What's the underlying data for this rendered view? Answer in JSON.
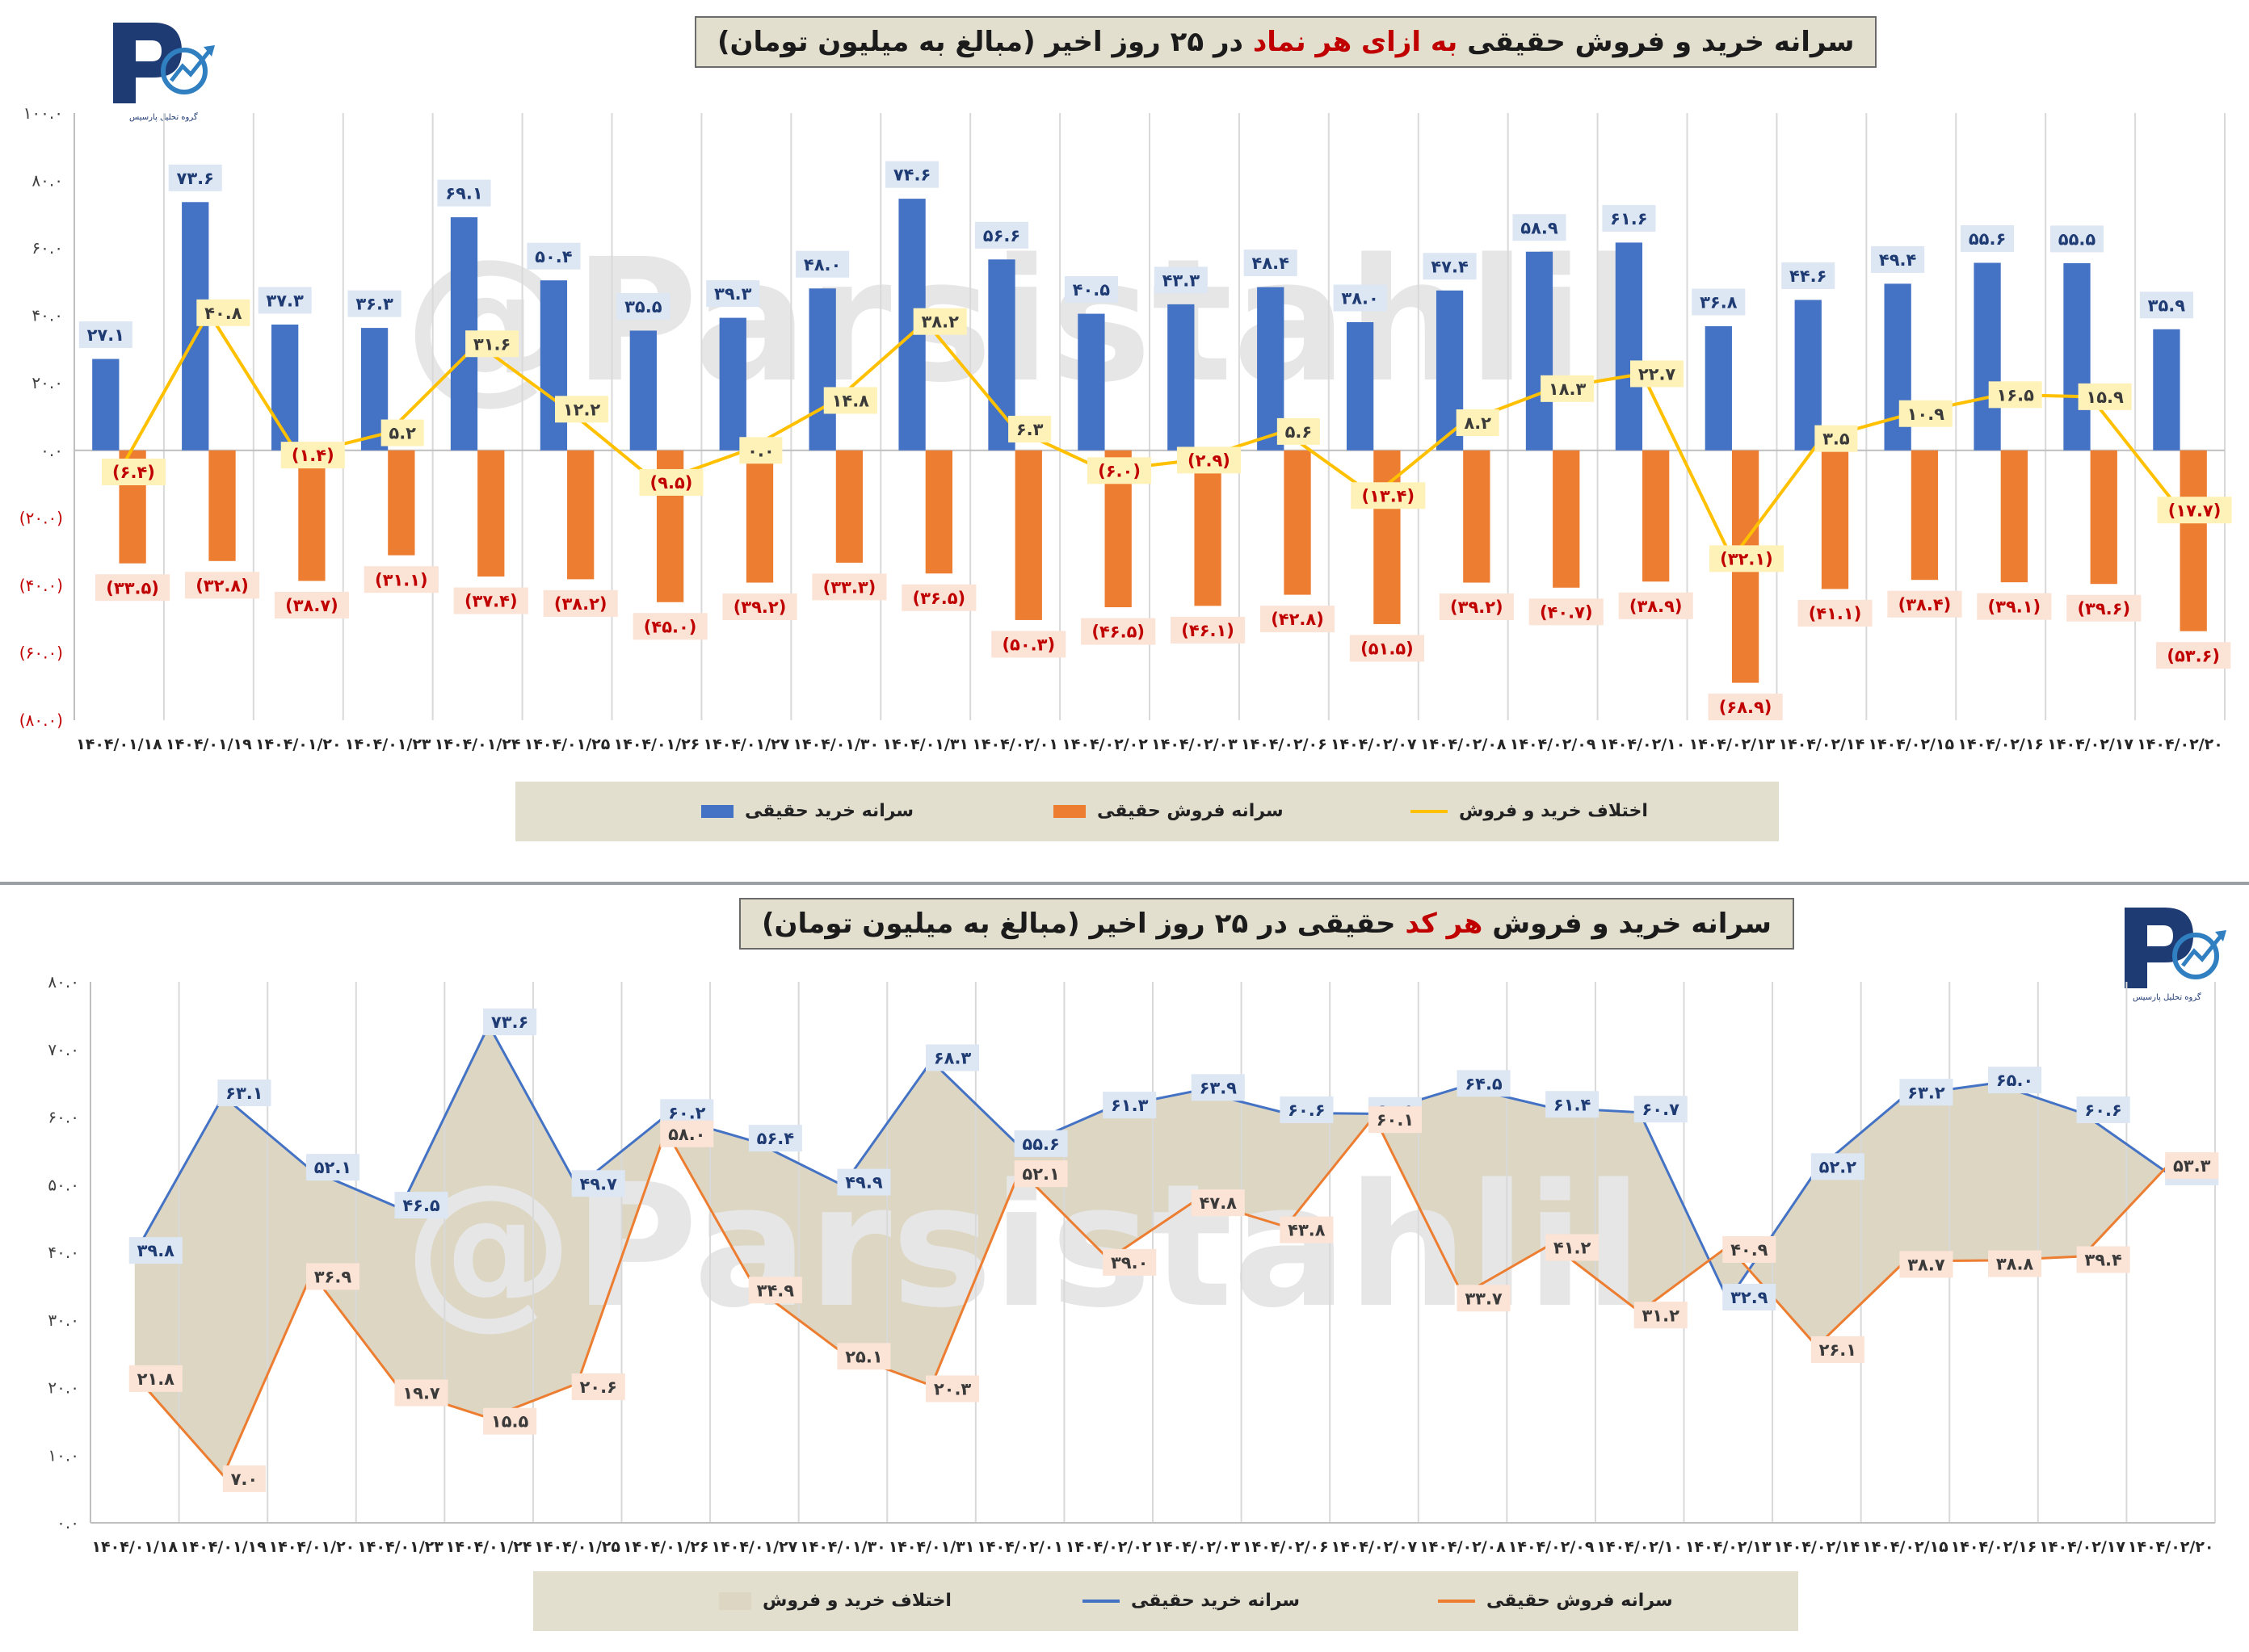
{
  "colors": {
    "buy": "#4472c4",
    "sell": "#ed7d31",
    "diff_line": "#ffc000",
    "area_fill": "#dcd6c2",
    "negative_label": "#c00000",
    "title_bg": "#e3dfcf",
    "title_accent": "#c00000",
    "watermark": "#e6e6e6"
  },
  "logo": {
    "caption": "گروه تحلیل پارسیس"
  },
  "watermark": "@Parsistahlil",
  "chart_data": [
    {
      "type": "bar",
      "title_parts": [
        "سرانه خرید و فروش حقیقی ",
        "به ازای هر نماد",
        " در ۲۵ روز اخیر (مبالغ به میلیون تومان)"
      ],
      "categories": [
        "۱۴۰۴/۰۱/۱۸",
        "۱۴۰۴/۰۱/۱۹",
        "۱۴۰۴/۰۱/۲۰",
        "۱۴۰۴/۰۱/۲۳",
        "۱۴۰۴/۰۱/۲۴",
        "۱۴۰۴/۰۱/۲۵",
        "۱۴۰۴/۰۱/۲۶",
        "۱۴۰۴/۰۱/۲۷",
        "۱۴۰۴/۰۱/۳۰",
        "۱۴۰۴/۰۱/۳۱",
        "۱۴۰۴/۰۲/۰۱",
        "۱۴۰۴/۰۲/۰۲",
        "۱۴۰۴/۰۲/۰۳",
        "۱۴۰۴/۰۲/۰۶",
        "۱۴۰۴/۰۲/۰۷",
        "۱۴۰۴/۰۲/۰۸",
        "۱۴۰۴/۰۲/۰۹",
        "۱۴۰۴/۰۲/۱۰",
        "۱۴۰۴/۰۲/۱۳",
        "۱۴۰۴/۰۲/۱۴",
        "۱۴۰۴/۰۲/۱۵",
        "۱۴۰۴/۰۲/۱۶",
        "۱۴۰۴/۰۲/۱۷",
        "۱۴۰۴/۰۲/۲۰"
      ],
      "series": [
        {
          "name": "سرانه خرید حقیقی",
          "kind": "bar",
          "values": [
            27.1,
            73.6,
            37.3,
            36.3,
            69.1,
            50.4,
            35.5,
            39.3,
            48.0,
            74.6,
            56.6,
            40.5,
            43.3,
            48.4,
            38.0,
            47.4,
            58.9,
            61.6,
            36.8,
            44.6,
            49.4,
            55.6,
            55.5,
            35.9
          ],
          "labels": [
            "۲۷.۱",
            "۷۳.۶",
            "۳۷.۳",
            "۳۶.۳",
            "۶۹.۱",
            "۵۰.۴",
            "۳۵.۵",
            "۳۹.۳",
            "۴۸.۰",
            "۷۴.۶",
            "۵۶.۶",
            "۴۰.۵",
            "۴۳.۳",
            "۴۸.۴",
            "۳۸.۰",
            "۴۷.۴",
            "۵۸.۹",
            "۶۱.۶",
            "۳۶.۸",
            "۴۴.۶",
            "۴۹.۴",
            "۵۵.۶",
            "۵۵.۵",
            "۳۵.۹"
          ]
        },
        {
          "name": "سرانه فروش حقیقی",
          "kind": "bar",
          "values": [
            -33.5,
            -32.8,
            -38.7,
            -31.1,
            -37.4,
            -38.2,
            -45.0,
            -39.2,
            -33.3,
            -36.5,
            -50.3,
            -46.5,
            -46.1,
            -42.8,
            -51.5,
            -39.2,
            -40.7,
            -38.9,
            -68.9,
            -41.1,
            -38.4,
            -39.1,
            -39.6,
            -53.6
          ],
          "labels": [
            "(۳۳.۵)",
            "(۳۲.۸)",
            "(۳۸.۷)",
            "(۳۱.۱)",
            "(۳۷.۴)",
            "(۳۸.۲)",
            "(۴۵.۰)",
            "(۳۹.۲)",
            "(۳۳.۳)",
            "(۳۶.۵)",
            "(۵۰.۳)",
            "(۴۶.۵)",
            "(۴۶.۱)",
            "(۴۲.۸)",
            "(۵۱.۵)",
            "(۳۹.۲)",
            "(۴۰.۷)",
            "(۳۸.۹)",
            "(۶۸.۹)",
            "(۴۱.۱)",
            "(۳۸.۴)",
            "(۳۹.۱)",
            "(۳۹.۶)",
            "(۵۳.۶)"
          ]
        },
        {
          "name": "اختلاف خرید و فروش",
          "kind": "line",
          "values": [
            -6.4,
            40.8,
            -1.4,
            5.2,
            31.6,
            12.2,
            -9.5,
            0.0,
            14.8,
            38.2,
            6.3,
            -6.0,
            -2.9,
            5.6,
            -13.4,
            8.2,
            18.3,
            22.7,
            -32.1,
            3.5,
            10.9,
            16.5,
            15.9,
            -17.7
          ],
          "labels": [
            "(۶.۴)",
            "۴۰.۸",
            "(۱.۴)",
            "۵.۲",
            "۳۱.۶",
            "۱۲.۲",
            "(۹.۵)",
            "۰.۰",
            "۱۴.۸",
            "۳۸.۲",
            "۶.۳",
            "(۶.۰)",
            "(۲.۹)",
            "۵.۶",
            "(۱۳.۴)",
            "۸.۲",
            "۱۸.۳",
            "۲۲.۷",
            "(۳۲.۱)",
            "۳.۵",
            "۱۰.۹",
            "۱۶.۵",
            "۱۵.۹",
            "(۱۷.۷)"
          ]
        }
      ],
      "ylim": [
        -80,
        100
      ],
      "yticks": [
        100,
        80,
        60,
        40,
        20,
        0,
        -20,
        -40,
        -60,
        -80
      ],
      "ytick_labels": [
        "۱۰۰.۰",
        "۸۰.۰",
        "۶۰.۰",
        "۴۰.۰",
        "۲۰.۰",
        "۰.۰",
        "(۲۰.۰)",
        "(۴۰.۰)",
        "(۶۰.۰)",
        "(۸۰.۰)"
      ],
      "grid": "vertical",
      "legend_position": "bottom",
      "legend": [
        "سرانه خرید حقیقی",
        "سرانه فروش حقیقی",
        "اختلاف خرید و فروش"
      ]
    },
    {
      "type": "area",
      "title_parts": [
        "سرانه خرید و فروش ",
        "هر کد",
        " حقیقی در ۲۵ روز اخیر (مبالغ به میلیون تومان)"
      ],
      "categories": [
        "۱۴۰۴/۰۱/۱۸",
        "۱۴۰۴/۰۱/۱۹",
        "۱۴۰۴/۰۱/۲۰",
        "۱۴۰۴/۰۱/۲۳",
        "۱۴۰۴/۰۱/۲۴",
        "۱۴۰۴/۰۱/۲۵",
        "۱۴۰۴/۰۱/۲۶",
        "۱۴۰۴/۰۱/۲۷",
        "۱۴۰۴/۰۱/۳۰",
        "۱۴۰۴/۰۱/۳۱",
        "۱۴۰۴/۰۲/۰۱",
        "۱۴۰۴/۰۲/۰۲",
        "۱۴۰۴/۰۲/۰۳",
        "۱۴۰۴/۰۲/۰۶",
        "۱۴۰۴/۰۲/۰۷",
        "۱۴۰۴/۰۲/۰۸",
        "۱۴۰۴/۰۲/۰۹",
        "۱۴۰۴/۰۲/۱۰",
        "۱۴۰۴/۰۲/۱۳",
        "۱۴۰۴/۰۲/۱۴",
        "۱۴۰۴/۰۲/۱۵",
        "۱۴۰۴/۰۲/۱۶",
        "۱۴۰۴/۰۲/۱۷",
        "۱۴۰۴/۰۲/۲۰"
      ],
      "series": [
        {
          "name": "سرانه خرید حقیقی",
          "kind": "line",
          "values": [
            39.8,
            63.1,
            52.1,
            46.5,
            73.6,
            49.7,
            60.2,
            56.4,
            49.9,
            68.3,
            55.6,
            61.3,
            63.9,
            60.6,
            60.5,
            64.5,
            61.4,
            60.7,
            32.9,
            52.2,
            63.2,
            65.0,
            60.6,
            51.4
          ],
          "labels": [
            "۳۹.۸",
            "۶۳.۱",
            "۵۲.۱",
            "۴۶.۵",
            "۷۳.۶",
            "۴۹.۷",
            "۶۰.۲",
            "۵۶.۴",
            "۴۹.۹",
            "۶۸.۳",
            "۵۵.۶",
            "۶۱.۳",
            "۶۳.۹",
            "۶۰.۶",
            "۶۰.۵",
            "۶۴.۵",
            "۶۱.۴",
            "۶۰.۷",
            "۳۲.۹",
            "۵۲.۲",
            "۶۳.۲",
            "۶۵.۰",
            "۶۰.۶",
            "۵۱.۴"
          ]
        },
        {
          "name": "سرانه فروش حقیقی",
          "kind": "line",
          "values": [
            21.8,
            7.0,
            36.9,
            19.7,
            15.5,
            20.6,
            58.0,
            34.9,
            25.1,
            20.3,
            52.1,
            39.0,
            47.8,
            43.8,
            60.1,
            33.7,
            41.2,
            31.2,
            40.9,
            26.1,
            38.7,
            38.8,
            39.4,
            53.3
          ],
          "labels": [
            "۲۱.۸",
            "۷.۰",
            "۳۶.۹",
            "۱۹.۷",
            "۱۵.۵",
            "۲۰.۶",
            "۵۸.۰",
            "۳۴.۹",
            "۲۵.۱",
            "۲۰.۳",
            "۵۲.۱",
            "۳۹.۰",
            "۴۷.۸",
            "۴۳.۸",
            "۶۰.۱",
            "۳۳.۷",
            "۴۱.۲",
            "۳۱.۲",
            "۴۰.۹",
            "۲۶.۱",
            "۳۸.۷",
            "۳۸.۸",
            "۳۹.۴",
            "۵۳.۳"
          ]
        }
      ],
      "area_name": "اختلاف خرید و فروش",
      "ylim": [
        0,
        80
      ],
      "yticks": [
        80,
        70,
        60,
        50,
        40,
        30,
        20,
        10,
        0
      ],
      "ytick_labels": [
        "۸۰.۰",
        "۷۰.۰",
        "۶۰.۰",
        "۵۰.۰",
        "۴۰.۰",
        "۳۰.۰",
        "۲۰.۰",
        "۱۰.۰",
        "۰.۰"
      ],
      "grid": "vertical",
      "legend_position": "bottom",
      "legend": [
        "اختلاف خرید و فروش",
        "سرانه خرید حقیقی",
        "سرانه فروش حقیقی"
      ]
    }
  ]
}
